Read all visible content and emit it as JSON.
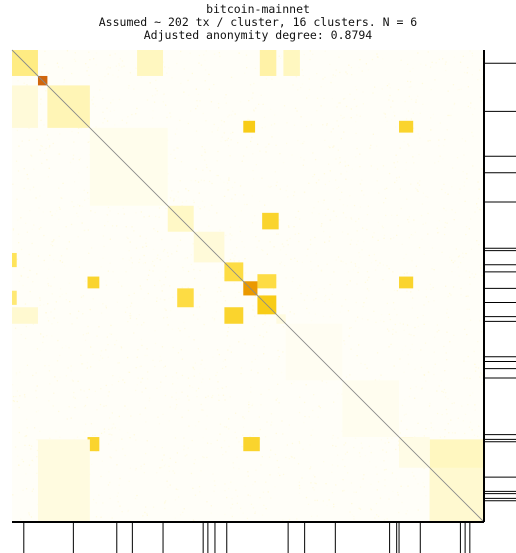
{
  "chart_data": {
    "type": "heatmap",
    "title_lines": [
      "bitcoin-mainnet",
      "Assumed ~ 202 tx / cluster, 16 clusters. N = 6",
      "Adjusted anonymity degree: 0.8794"
    ],
    "n": 1000,
    "colormap": [
      "#ffffff",
      "#fff7c0",
      "#ffe45a",
      "#f5c400",
      "#e88a00",
      "#c85a10"
    ],
    "diagonal_color": "#8a8a8a",
    "clusters": [
      {
        "start": 0,
        "end": 55,
        "intensity": 0.32
      },
      {
        "start": 55,
        "end": 75,
        "intensity": 0.95
      },
      {
        "start": 75,
        "end": 165,
        "intensity": 0.22
      },
      {
        "start": 165,
        "end": 330,
        "intensity": 0.06
      },
      {
        "start": 330,
        "end": 385,
        "intensity": 0.18
      },
      {
        "start": 385,
        "end": 450,
        "intensity": 0.12
      },
      {
        "start": 450,
        "end": 490,
        "intensity": 0.45
      },
      {
        "start": 490,
        "end": 520,
        "intensity": 0.75
      },
      {
        "start": 520,
        "end": 560,
        "intensity": 0.55
      },
      {
        "start": 560,
        "end": 580,
        "intensity": 0.1
      },
      {
        "start": 580,
        "end": 700,
        "intensity": 0.04
      },
      {
        "start": 700,
        "end": 820,
        "intensity": 0.05
      },
      {
        "start": 820,
        "end": 885,
        "intensity": 0.08
      },
      {
        "start": 885,
        "end": 1000,
        "intensity": 0.15
      }
    ],
    "offdiag_blocks": [
      {
        "row": [
          0,
          55
        ],
        "col": [
          265,
          320
        ],
        "intensity": 0.2
      },
      {
        "row": [
          0,
          55
        ],
        "col": [
          525,
          560
        ],
        "intensity": 0.25
      },
      {
        "row": [
          0,
          55
        ],
        "col": [
          575,
          610
        ],
        "intensity": 0.2
      },
      {
        "row": [
          75,
          165
        ],
        "col": [
          0,
          55
        ],
        "intensity": 0.12
      },
      {
        "row": [
          150,
          175
        ],
        "col": [
          490,
          515
        ],
        "intensity": 0.55
      },
      {
        "row": [
          150,
          175
        ],
        "col": [
          820,
          850
        ],
        "intensity": 0.5
      },
      {
        "row": [
          345,
          380
        ],
        "col": [
          530,
          565
        ],
        "intensity": 0.5
      },
      {
        "row": [
          430,
          460
        ],
        "col": [
          0,
          10
        ],
        "intensity": 0.4
      },
      {
        "row": [
          475,
          505
        ],
        "col": [
          520,
          560
        ],
        "intensity": 0.45
      },
      {
        "row": [
          480,
          505
        ],
        "col": [
          160,
          185
        ],
        "intensity": 0.5
      },
      {
        "row": [
          480,
          505
        ],
        "col": [
          820,
          850
        ],
        "intensity": 0.5
      },
      {
        "row": [
          505,
          545
        ],
        "col": [
          350,
          385
        ],
        "intensity": 0.45
      },
      {
        "row": [
          510,
          540
        ],
        "col": [
          0,
          10
        ],
        "intensity": 0.35
      },
      {
        "row": [
          545,
          580
        ],
        "col": [
          450,
          490
        ],
        "intensity": 0.5
      },
      {
        "row": [
          545,
          580
        ],
        "col": [
          0,
          55
        ],
        "intensity": 0.15
      },
      {
        "row": [
          820,
          850
        ],
        "col": [
          160,
          185
        ],
        "intensity": 0.5
      },
      {
        "row": [
          820,
          850
        ],
        "col": [
          490,
          525
        ],
        "intensity": 0.5
      },
      {
        "row": [
          820,
          850
        ],
        "col": [
          820,
          850
        ],
        "intensity": 0.5
      },
      {
        "row": [
          825,
          1000
        ],
        "col": [
          55,
          165
        ],
        "intensity": 0.1
      },
      {
        "row": [
          825,
          1000
        ],
        "col": [
          885,
          1000
        ],
        "intensity": 0.2
      }
    ],
    "right_ticks": [
      28,
      130,
      225,
      260,
      322,
      420,
      425,
      455,
      470,
      505,
      535,
      565,
      575,
      650,
      660,
      675,
      695,
      815,
      825,
      830,
      905,
      935,
      940,
      950,
      955
    ],
    "bottom_ticks": [
      25,
      130,
      222,
      255,
      320,
      405,
      415,
      430,
      455,
      585,
      620,
      685,
      800,
      815,
      820,
      865,
      950,
      960,
      970
    ]
  }
}
